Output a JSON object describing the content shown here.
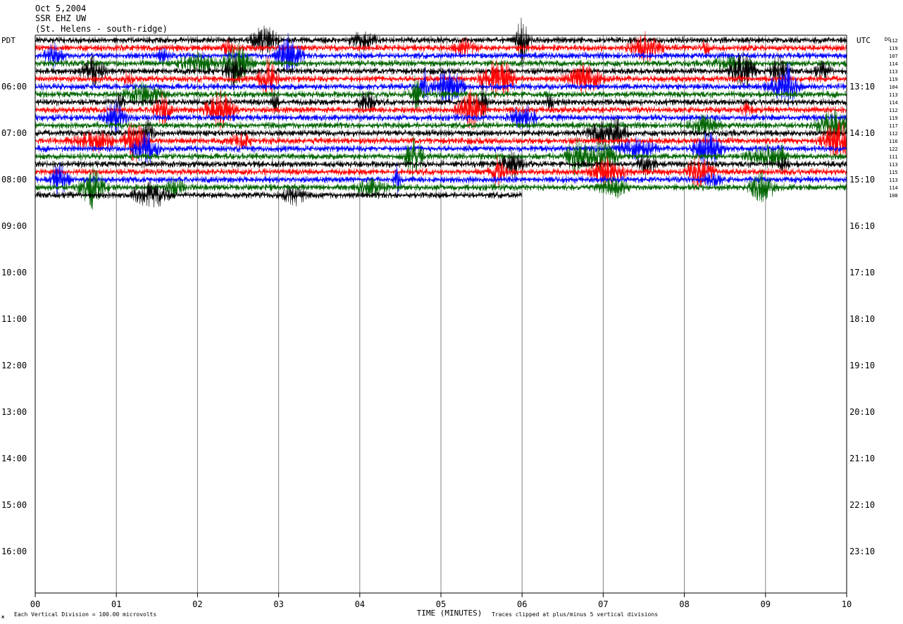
{
  "header": {
    "date": "Oct 5,2004",
    "station": "SSR EHZ UW",
    "location": "(St. Helens - south-ridge)"
  },
  "left_tz": "PDT",
  "right_tz": "UTC",
  "right_col_label": "DC",
  "footer": {
    "xlabel": "TIME (MINUTES)",
    "scale_note": "Each Vertical Division =  100.00 microvolts",
    "clip_note": "Traces clipped at plus/minus 5 vertical divisions",
    "corner_mark": "ж"
  },
  "colors": {
    "trace_cycle": [
      "#000000",
      "#ff0000",
      "#0000ff",
      "#006400"
    ],
    "grid": "#808080",
    "axis": "#000000"
  },
  "chart_data": {
    "type": "line",
    "title": "",
    "xlabel": "TIME (MINUTES)",
    "ylabel": "",
    "x_ticks": [
      "00",
      "01",
      "02",
      "03",
      "04",
      "05",
      "06",
      "07",
      "08",
      "09",
      "10"
    ],
    "xlim": [
      0,
      10
    ],
    "left_hour_labels": [
      "06:00",
      "07:00",
      "08:00",
      "09:00",
      "10:00",
      "11:00",
      "12:00",
      "13:00",
      "14:00",
      "15:00",
      "16:00"
    ],
    "right_hour_labels": [
      "13:10",
      "14:10",
      "15:10",
      "16:10",
      "17:10",
      "18:10",
      "19:10",
      "20:10",
      "21:10",
      "22:10",
      "23:10"
    ],
    "dc_offsets": [
      "112",
      "119",
      "107",
      "114",
      "113",
      "119",
      "104",
      "113",
      "114",
      "112",
      "119",
      "117",
      "112",
      "116",
      "122",
      "111",
      "113",
      "115",
      "113",
      "114",
      "108"
    ],
    "trace_count": 21,
    "traces_per_hour": 6,
    "minutes_per_trace": 10,
    "grid": true,
    "units": "microvolts",
    "vertical_division": 100.0,
    "clip_divisions": 5
  }
}
